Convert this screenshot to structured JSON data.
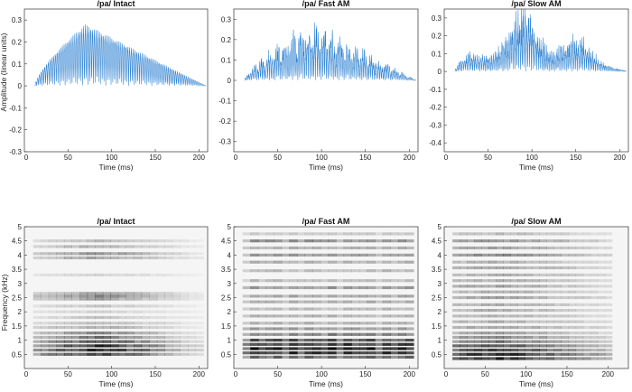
{
  "figure": {
    "waveform_ylabel": "Amplitude (linear units)",
    "spectrogram_ylabel": "Frequency (kHz)"
  },
  "chart_data": [
    {
      "type": "line",
      "title": "/pa/ Intact",
      "xlabel": "Time (ms)",
      "ylabel": "Amplitude (linear units)",
      "xlim": [
        0,
        210
      ],
      "ylim": [
        -0.3,
        0.35
      ],
      "xticks": [
        "50",
        "100",
        "150",
        "200"
      ],
      "yticks": [
        "-0.3",
        "-0.2",
        "-0.1",
        "0",
        "0.1",
        "0.2",
        "0.3"
      ],
      "color": "#2a7fd0",
      "series": [
        {
          "onset_ms": 12,
          "offset_ms": 208,
          "peak_ms": 70,
          "peak_amplitude": 0.33,
          "min_amplitude": -0.3,
          "modulation": "none"
        }
      ]
    },
    {
      "type": "line",
      "title": "/pa/ Fast AM",
      "xlabel": "Time (ms)",
      "ylabel": "",
      "xlim": [
        0,
        210
      ],
      "ylim": [
        -0.35,
        0.35
      ],
      "xticks": [
        "50",
        "100",
        "150",
        "200"
      ],
      "yticks": [
        "-0.3",
        "-0.2",
        "-0.1",
        "0",
        "0.1",
        "0.2",
        "0.3"
      ],
      "color": "#2a7fd0",
      "series": [
        {
          "onset_ms": 12,
          "offset_ms": 208,
          "peak_ms": 90,
          "peak_amplitude": 0.32,
          "min_amplitude": -0.34,
          "modulation": "fast"
        }
      ]
    },
    {
      "type": "line",
      "title": "/pa/ Slow AM",
      "xlabel": "Time (ms)",
      "ylabel": "",
      "xlim": [
        0,
        210
      ],
      "ylim": [
        -0.45,
        0.35
      ],
      "xticks": [
        "50",
        "100",
        "150",
        "200"
      ],
      "yticks": [
        "-0.4",
        "-0.3",
        "-0.2",
        "-0.1",
        "0",
        "0.1",
        "0.2",
        "0.3"
      ],
      "color": "#2a7fd0",
      "series": [
        {
          "onset_ms": 12,
          "offset_ms": 208,
          "peak_ms": 100,
          "peak_amplitude": 0.33,
          "min_amplitude": -0.44,
          "modulation": "slow"
        }
      ]
    },
    {
      "type": "heatmap",
      "title": "/pa/ Intact",
      "xlabel": "Time (ms)",
      "ylabel": "Frequency (kHz)",
      "xlim": [
        0,
        210
      ],
      "ylim": [
        0,
        5
      ],
      "xticks": [
        "50",
        "100",
        "150",
        "200"
      ],
      "yticks": [
        "0.5",
        "1",
        "1.5",
        "2",
        "2.5",
        "3",
        "3.5",
        "4",
        "4.5",
        "5"
      ],
      "colormap": "gray_r",
      "bands_khz": [
        0.5,
        0.65,
        0.8,
        0.95,
        1.1,
        1.25,
        1.45,
        1.6,
        1.8,
        2.0,
        2.2,
        2.45,
        2.55,
        2.65,
        3.3,
        3.9,
        4.05,
        4.3,
        4.5
      ],
      "band_strength": [
        0.8,
        0.9,
        0.85,
        0.7,
        0.55,
        0.45,
        0.3,
        0.25,
        0.2,
        0.15,
        0.2,
        0.35,
        0.45,
        0.35,
        0.15,
        0.35,
        0.4,
        0.3,
        0.25
      ],
      "modulation": "none"
    },
    {
      "type": "heatmap",
      "title": "/pa/ Fast AM",
      "xlabel": "Time (ms)",
      "ylabel": "",
      "xlim": [
        0,
        210
      ],
      "ylim": [
        0,
        5
      ],
      "xticks": [
        "50",
        "100",
        "150",
        "200"
      ],
      "yticks": [
        "0.5",
        "1",
        "1.5",
        "2",
        "2.5",
        "3",
        "3.5",
        "4",
        "4.5",
        "5"
      ],
      "colormap": "gray_r",
      "bands_khz": [
        0.4,
        0.55,
        0.7,
        0.85,
        1.0,
        1.2,
        1.4,
        1.6,
        1.85,
        2.1,
        2.35,
        2.55,
        2.85,
        3.1,
        3.45,
        3.75,
        4.0,
        4.25,
        4.5,
        4.75
      ],
      "band_strength": [
        0.6,
        0.85,
        0.95,
        0.85,
        0.7,
        0.5,
        0.4,
        0.3,
        0.3,
        0.25,
        0.3,
        0.35,
        0.4,
        0.25,
        0.25,
        0.3,
        0.4,
        0.3,
        0.45,
        0.2
      ],
      "modulation": "fast"
    },
    {
      "type": "heatmap",
      "title": "/pa/ Slow AM",
      "xlabel": "Time (ms)",
      "ylabel": "",
      "xlim": [
        0,
        225
      ],
      "ylim": [
        0,
        5
      ],
      "xticks": [
        "50",
        "100",
        "150",
        "200"
      ],
      "yticks": [
        "0.5",
        "1",
        "1.5",
        "2",
        "2.5",
        "3",
        "3.5",
        "4",
        "4.5",
        "5"
      ],
      "colormap": "gray_r",
      "bands_khz": [
        0.35,
        0.5,
        0.65,
        0.8,
        0.95,
        1.1,
        1.25,
        1.45,
        1.65,
        1.85,
        2.05,
        2.25,
        2.5,
        2.7,
        2.9,
        3.1,
        3.3,
        3.55,
        3.75,
        4.0,
        4.25,
        4.5,
        4.75
      ],
      "band_strength": [
        0.85,
        0.9,
        0.75,
        0.7,
        0.55,
        0.45,
        0.35,
        0.35,
        0.3,
        0.3,
        0.3,
        0.3,
        0.35,
        0.3,
        0.35,
        0.3,
        0.3,
        0.35,
        0.3,
        0.45,
        0.35,
        0.4,
        0.25
      ],
      "modulation": "slow"
    }
  ]
}
